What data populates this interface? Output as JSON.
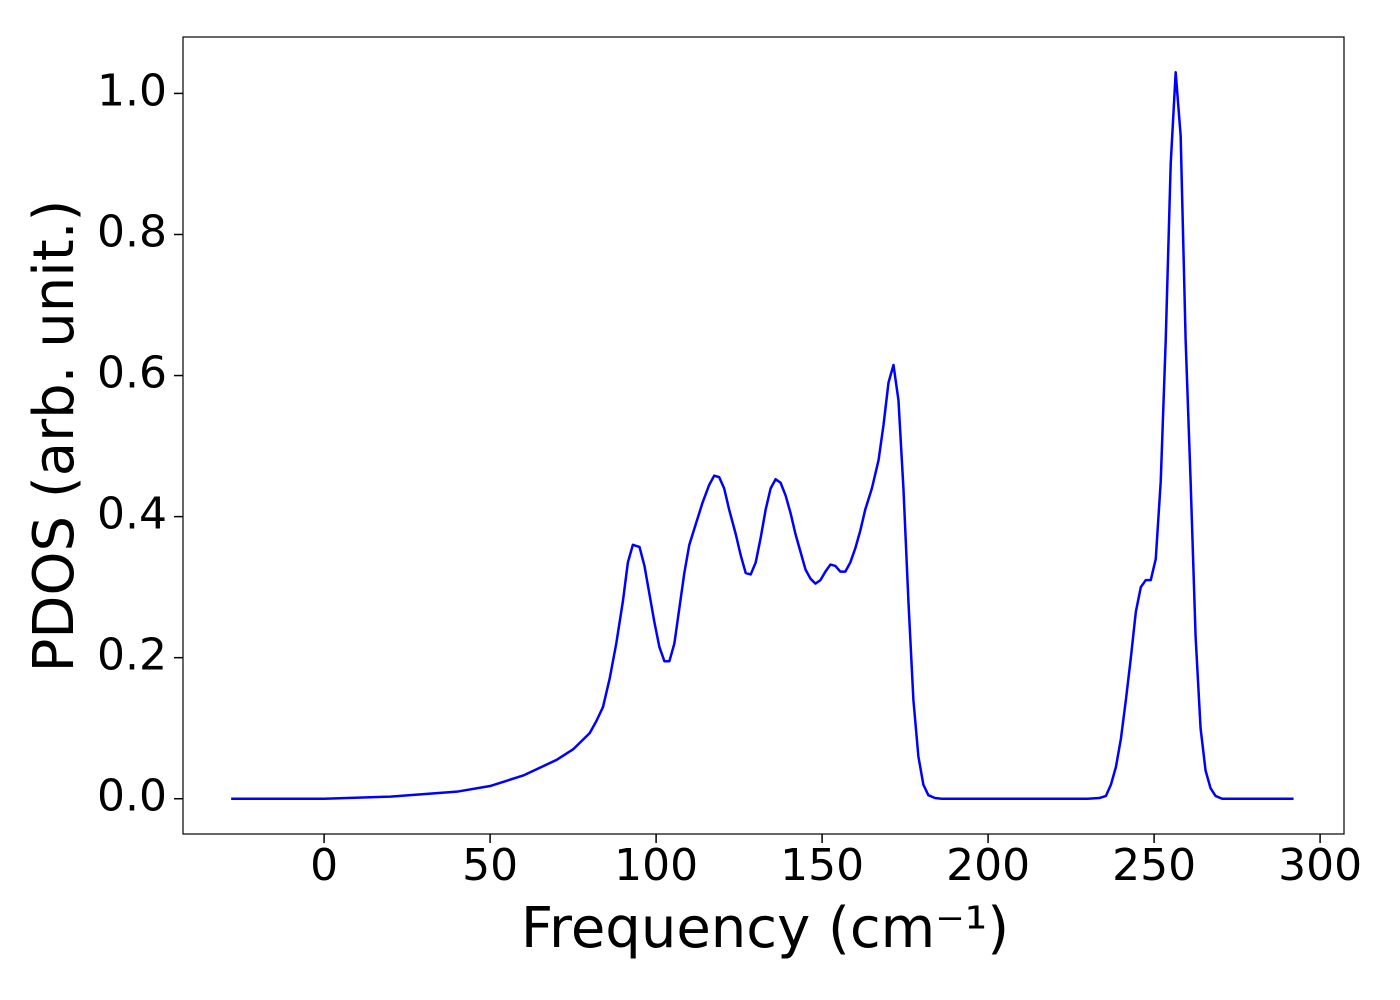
{
  "chart_data": {
    "type": "line",
    "xlabel": "Frequency (cm⁻¹)",
    "ylabel": "PDOS (arb. unit.)",
    "series": [
      {
        "name": "PDOS",
        "color": "#0000ff",
        "x": [
          -28,
          0,
          20,
          40,
          50,
          60,
          70,
          75,
          80,
          82,
          84,
          86,
          88,
          90,
          91.5,
          93,
          95,
          96.5,
          98,
          99.5,
          101,
          102.5,
          104,
          105.5,
          107,
          108.5,
          110,
          112,
          114,
          116,
          117.5,
          119,
          120.5,
          122,
          124,
          125.5,
          127,
          128.5,
          130,
          131.5,
          133,
          134.5,
          136,
          137.5,
          139,
          140.5,
          142,
          143.5,
          145,
          146.5,
          148,
          149.5,
          151,
          152.5,
          154,
          155.5,
          157,
          158.5,
          160,
          161.5,
          163,
          165,
          167,
          168.5,
          170,
          171.5,
          173,
          174.5,
          176,
          177.5,
          179,
          180.5,
          182,
          184,
          186,
          230,
          233.5,
          235.5,
          237,
          238.5,
          240,
          241.5,
          243,
          244.5,
          246,
          247.5,
          249,
          250.5,
          252,
          253.5,
          255,
          256.5,
          258,
          259.5,
          261,
          262.5,
          264,
          265.5,
          267,
          268.5,
          270.5,
          292
        ],
        "values": [
          0,
          0,
          0.003,
          0.01,
          0.018,
          0.033,
          0.055,
          0.07,
          0.093,
          0.11,
          0.13,
          0.17,
          0.22,
          0.28,
          0.335,
          0.36,
          0.357,
          0.33,
          0.29,
          0.25,
          0.215,
          0.195,
          0.195,
          0.22,
          0.27,
          0.32,
          0.36,
          0.39,
          0.42,
          0.445,
          0.458,
          0.456,
          0.44,
          0.41,
          0.375,
          0.345,
          0.32,
          0.318,
          0.335,
          0.37,
          0.41,
          0.44,
          0.453,
          0.448,
          0.43,
          0.405,
          0.375,
          0.35,
          0.325,
          0.312,
          0.305,
          0.31,
          0.322,
          0.332,
          0.33,
          0.322,
          0.322,
          0.335,
          0.355,
          0.38,
          0.41,
          0.44,
          0.48,
          0.53,
          0.59,
          0.615,
          0.565,
          0.44,
          0.28,
          0.14,
          0.06,
          0.02,
          0.005,
          0.001,
          0,
          0,
          0.001,
          0.004,
          0.02,
          0.045,
          0.085,
          0.14,
          0.2,
          0.265,
          0.3,
          0.31,
          0.31,
          0.34,
          0.45,
          0.65,
          0.9,
          1.03,
          0.94,
          0.65,
          0.45,
          0.23,
          0.1,
          0.04,
          0.015,
          0.004,
          0,
          0
        ]
      }
    ],
    "xlim": [
      -42.5,
      307.2
    ],
    "xticks": [
      0,
      50,
      100,
      150,
      200,
      250,
      300
    ],
    "ylim": [
      -0.05,
      1.08
    ],
    "yticks": [
      {
        "value": 0,
        "label": "0.0"
      },
      0.2,
      0.4,
      0.6,
      0.8,
      {
        "value": 1,
        "label": "1.0"
      }
    ],
    "grid": false
  }
}
